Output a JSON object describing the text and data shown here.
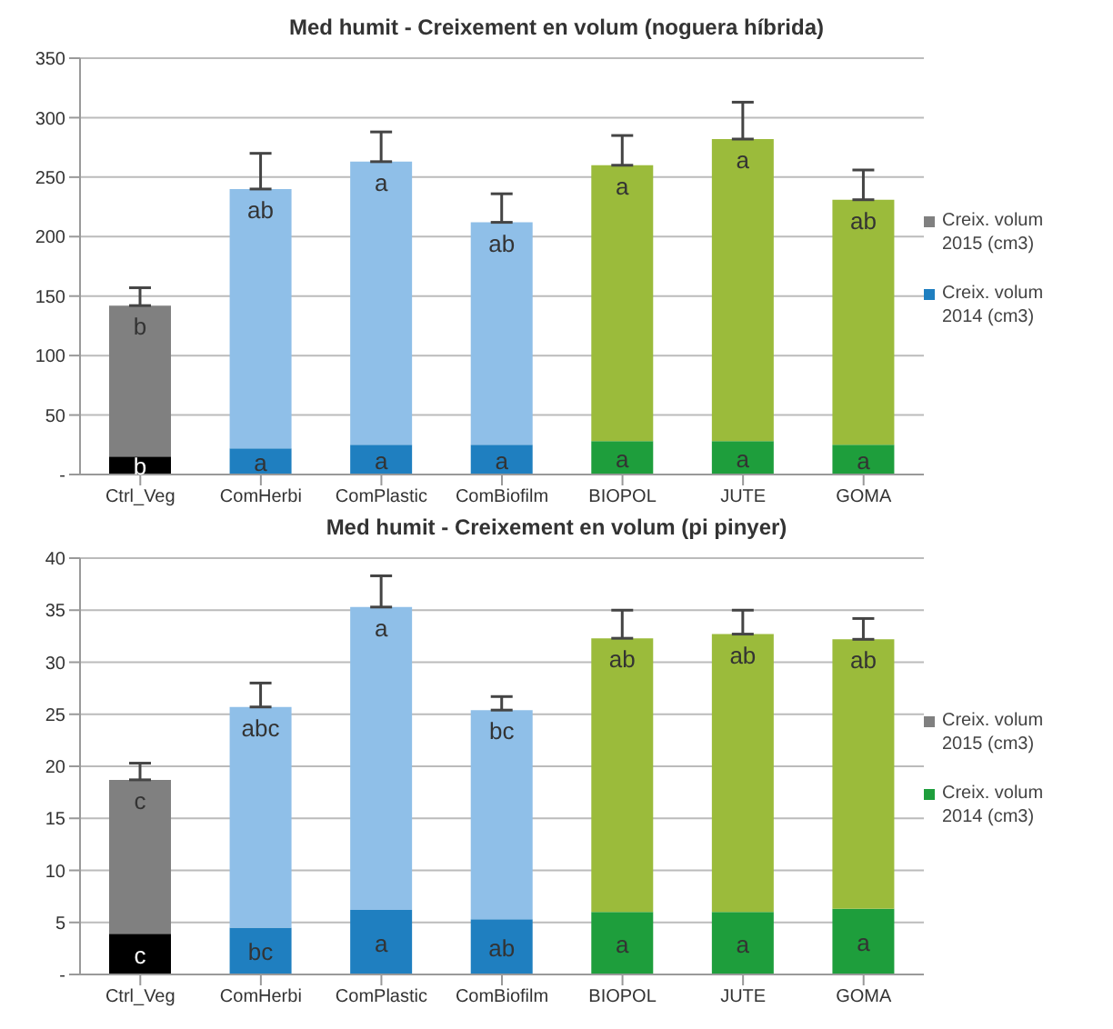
{
  "chart_data": [
    {
      "type": "bar",
      "title": "Med humit -  Creixement en volum (noguera híbrida)",
      "categories": [
        "Ctrl_Veg",
        "ComHerbi",
        "ComPlastic",
        "ComBiofilm",
        "BIOPOL",
        "JUTE",
        "GOMA"
      ],
      "stacked": true,
      "ylim": [
        0,
        350
      ],
      "yticks": [
        {
          "value": 0,
          "label": "-"
        },
        50,
        100,
        150,
        200,
        250,
        300,
        350
      ],
      "grid": "y",
      "legend": "right",
      "series": [
        {
          "name": "Creix. volum 2014 (cm3)",
          "color": "#1f7fc0",
          "colors": [
            "#000000",
            "#1f7fc0",
            "#1f7fc0",
            "#1f7fc0",
            "#1e9e3c",
            "#1e9e3c",
            "#1e9e3c"
          ],
          "values": [
            15,
            22,
            25,
            25,
            28,
            28,
            25
          ],
          "value_labels": [
            "b",
            "a",
            "a",
            "a",
            "a",
            "a",
            "a"
          ]
        },
        {
          "name": "Creix. volum 2015 (cm3)",
          "color": "#808080",
          "colors": [
            "#808080",
            "#8fbfe8",
            "#8fbfe8",
            "#8fbfe8",
            "#9bbb3b",
            "#9bbb3b",
            "#9bbb3b"
          ],
          "values": [
            127,
            218,
            238,
            187,
            232,
            254,
            206
          ],
          "errors": [
            [
              142,
              157
            ],
            [
              240,
              270
            ],
            [
              263,
              288
            ],
            [
              212,
              236
            ],
            [
              260,
              285
            ],
            [
              282,
              313
            ],
            [
              231,
              256
            ]
          ],
          "value_labels": [
            "b",
            "ab",
            "a",
            "ab",
            "a",
            "a",
            "ab"
          ]
        }
      ]
    },
    {
      "type": "bar",
      "title": "Med humit -  Creixement en volum (pi pinyer)",
      "categories": [
        "Ctrl_Veg",
        "ComHerbi",
        "ComPlastic",
        "ComBiofilm",
        "BIOPOL",
        "JUTE",
        "GOMA"
      ],
      "stacked": true,
      "ylim": [
        0,
        40
      ],
      "yticks": [
        {
          "value": 0,
          "label": "-"
        },
        5,
        10,
        15,
        20,
        25,
        30,
        35,
        40
      ],
      "grid": "y",
      "legend": "right",
      "series": [
        {
          "name": "Creix. volum 2014 (cm3)",
          "color": "#1e9e3c",
          "colors": [
            "#000000",
            "#1f7fc0",
            "#1f7fc0",
            "#1f7fc0",
            "#1e9e3c",
            "#1e9e3c",
            "#1e9e3c"
          ],
          "values": [
            3.9,
            4.5,
            6.2,
            5.3,
            6,
            6,
            6.3
          ],
          "value_labels": [
            "c",
            "bc",
            "a",
            "ab",
            "a",
            "a",
            "a"
          ]
        },
        {
          "name": "Creix. volum 2015 (cm3)",
          "color": "#808080",
          "colors": [
            "#808080",
            "#8fbfe8",
            "#8fbfe8",
            "#8fbfe8",
            "#9bbb3b",
            "#9bbb3b",
            "#9bbb3b"
          ],
          "values": [
            14.8,
            21.2,
            29.1,
            20.1,
            26.3,
            26.7,
            25.9
          ],
          "errors": [
            [
              18.7,
              20.3
            ],
            [
              25.7,
              28
            ],
            [
              35.3,
              38.3
            ],
            [
              25.4,
              26.7
            ],
            [
              32.3,
              35
            ],
            [
              32.7,
              35
            ],
            [
              32.2,
              34.2
            ]
          ],
          "value_labels": [
            "c",
            "abc",
            "a",
            "bc",
            "ab",
            "ab",
            "ab"
          ]
        }
      ]
    }
  ]
}
